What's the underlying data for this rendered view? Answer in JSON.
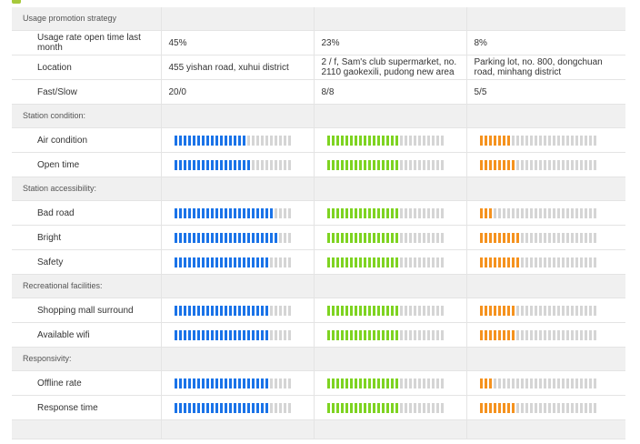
{
  "colors": {
    "blue": "#1a73e8",
    "green": "#7ed321",
    "orange": "#f5921e",
    "empty": "#d5d5d5",
    "section_bg": "#f0f0f0"
  },
  "sections": [
    {
      "title": "Usage promotion strategy",
      "rows": [
        {
          "type": "info",
          "label": "Usage rate open time last month",
          "values": [
            "45%",
            "23%",
            "8%"
          ]
        },
        {
          "type": "info",
          "label": "Location",
          "values": [
            "455 yishan road, xuhui district",
            "2 / f, Sam's club supermarket, no. 2110 gaokexili, pudong new area",
            "Parking lot, no. 800, dongchuan road, minhang district"
          ]
        },
        {
          "type": "info",
          "label": "Fast/Slow",
          "values": [
            "20/0",
            "8/8",
            "5/5"
          ]
        }
      ]
    },
    {
      "title": "Station condition:",
      "rows": [
        {
          "type": "bars",
          "label": "Air condition",
          "levels": [
            0.6,
            0.6,
            0.25
          ]
        },
        {
          "type": "bars",
          "label": "Open time",
          "levels": [
            0.65,
            0.6,
            0.3
          ]
        }
      ]
    },
    {
      "title": "Station accessibility:",
      "rows": [
        {
          "type": "bars",
          "label": "Bad road",
          "levels": [
            0.85,
            0.6,
            0.1
          ]
        },
        {
          "type": "bars",
          "label": "Bright",
          "levels": [
            0.9,
            0.6,
            0.35
          ]
        },
        {
          "type": "bars",
          "label": "Safety",
          "levels": [
            0.8,
            0.6,
            0.35
          ]
        }
      ]
    },
    {
      "title": "Recreational facilities:",
      "rows": [
        {
          "type": "bars",
          "label": "Shopping mall surround",
          "levels": [
            0.8,
            0.6,
            0.3
          ]
        },
        {
          "type": "bars",
          "label": "Available wifi",
          "levels": [
            0.8,
            0.6,
            0.3
          ]
        }
      ]
    },
    {
      "title": "Responsivity:",
      "rows": [
        {
          "type": "bars",
          "label": "Offline rate",
          "levels": [
            0.8,
            0.6,
            0.1
          ]
        },
        {
          "type": "bars",
          "label": "Response time",
          "levels": [
            0.8,
            0.6,
            0.3
          ]
        }
      ]
    },
    {
      "title": "",
      "rows": []
    }
  ],
  "bar_colors": [
    "blue",
    "green",
    "orange"
  ]
}
